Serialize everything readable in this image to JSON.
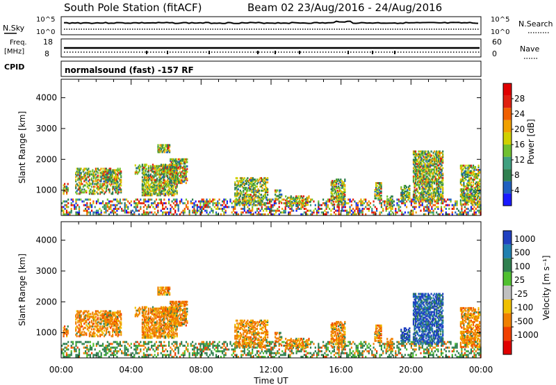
{
  "title": "South Pole Station (fitACF)",
  "subtitle": "Beam 02 23/Aug/2016 - 24/Aug/2016",
  "header_panels": {
    "nsky": {
      "left_label": "N.Sky",
      "left_ticks": [
        "10^5",
        "10^0"
      ],
      "right_label": "N.Search",
      "right_ticks": [
        "10^5",
        "10^0"
      ]
    },
    "freq": {
      "left_label_1": "Freq.",
      "left_label_2": "[MHz]",
      "left_ticks": [
        "18",
        "8"
      ],
      "right_label": "Nave",
      "right_ticks": [
        "60",
        "0"
      ]
    },
    "cpid": {
      "label": "CPID",
      "text": "normalsound (fast) -157 RF"
    }
  },
  "chart_data": [
    {
      "type": "heatmap",
      "name": "power",
      "ylabel": "Slant Range [km]",
      "xlabel": "",
      "yticks": [
        "1000",
        "2000",
        "3000",
        "4000"
      ],
      "ylim": [
        180,
        4600
      ],
      "colorbar": {
        "label": "Power [dB]",
        "ticks": [
          "4",
          "8",
          "12",
          "16",
          "20",
          "24",
          "28"
        ],
        "range": [
          0,
          32
        ],
        "colors": [
          "#1a1aff",
          "#2060c0",
          "#308050",
          "#40a080",
          "#70c030",
          "#d0d000",
          "#f0a000",
          "#f06000",
          "#e02010",
          "#e00000"
        ]
      }
    },
    {
      "type": "heatmap",
      "name": "velocity",
      "ylabel": "Slant Range [km]",
      "xlabel": "Time UT",
      "xticks": [
        "00:00",
        "04:00",
        "08:00",
        "12:00",
        "16:00",
        "20:00",
        "00:00"
      ],
      "yticks": [
        "1000",
        "2000",
        "3000",
        "4000"
      ],
      "ylim": [
        180,
        4600
      ],
      "colorbar": {
        "label": "Velocity [m s⁻¹]",
        "ticks": [
          "1000",
          "500",
          "100",
          "25",
          "-25",
          "-100",
          "-500",
          "-1000"
        ],
        "colors": [
          "#2040c0",
          "#2080b0",
          "#308050",
          "#50c030",
          "#c0c0c0",
          "#f0c000",
          "#f08000",
          "#f04000",
          "#e00000"
        ]
      }
    }
  ]
}
